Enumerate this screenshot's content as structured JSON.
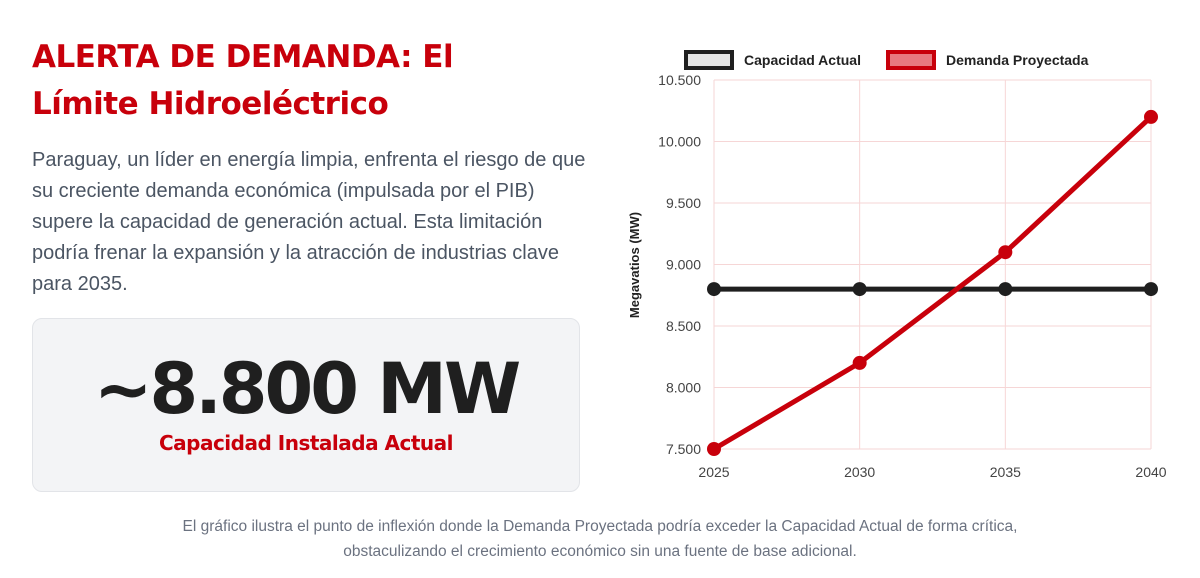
{
  "header": {
    "title_line1": "ALERTA DE DEMANDA: El",
    "title_line2": "Límite Hidroeléctrico"
  },
  "description": "Paraguay, un líder en energía limpia, enfrenta el riesgo de que su creciente demanda económica (impulsada por el PIB) supere la capacidad de generación actual. Esta limitación podría frenar la expansión y la atracción de industrias clave para 2035.",
  "stat_card": {
    "value": "~8.800 MW",
    "label": "Capacidad Instalada Actual"
  },
  "caption": {
    "line1": "El gráfico ilustra el punto de inflexión donde la Demanda Proyectada podría exceder la Capacidad Actual de forma crítica,",
    "line2": "obstaculizando el crecimiento económico sin una fuente de base adicional."
  },
  "colors": {
    "accent": "#c8000b",
    "capacity_line": "#1f1f1f",
    "grid": "#f6d6d6"
  },
  "chart_data": {
    "type": "line",
    "title": "",
    "xlabel": "",
    "ylabel": "Megavatios (MW)",
    "x": [
      "2025",
      "2030",
      "2035",
      "2040"
    ],
    "ylim": [
      7500,
      10500
    ],
    "y_ticks": [
      "7.500",
      "8.000",
      "8.500",
      "9.000",
      "9.500",
      "10.000",
      "10.500"
    ],
    "y_tick_values": [
      7500,
      8000,
      8500,
      9000,
      9500,
      10000,
      10500
    ],
    "grid": true,
    "legend_position": "top",
    "series": [
      {
        "name": "Capacidad Actual",
        "values": [
          8800,
          8800,
          8800,
          8800
        ],
        "color": "#1f1f1f",
        "fill": "#e5e5e5"
      },
      {
        "name": "Demanda Proyectada",
        "values": [
          7500,
          8200,
          9100,
          10200
        ],
        "color": "#c8000b",
        "fill": "#e87a80"
      }
    ]
  }
}
